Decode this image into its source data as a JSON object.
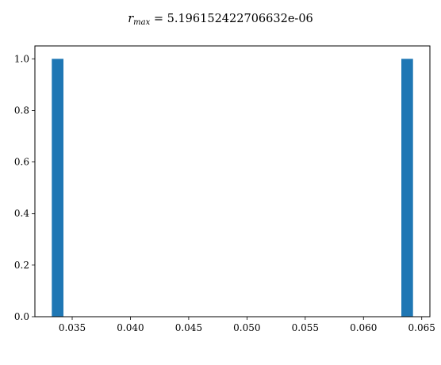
{
  "chart_data": {
    "type": "bar",
    "title_var": "r",
    "title_sub": "max",
    "title_value": " = 5.196152422706632e-06",
    "bars": [
      {
        "x_start": 0.03325,
        "x_end": 0.03425,
        "value": 1.0
      },
      {
        "x_start": 0.06325,
        "x_end": 0.06425,
        "value": 1.0
      }
    ],
    "xlim": [
      0.0318,
      0.0657
    ],
    "ylim": [
      0.0,
      1.05
    ],
    "xticks": [
      0.035,
      0.04,
      0.045,
      0.05,
      0.055,
      0.06,
      0.065
    ],
    "xtick_labels": [
      "0.035",
      "0.040",
      "0.045",
      "0.050",
      "0.055",
      "0.060",
      "0.065"
    ],
    "yticks": [
      0.0,
      0.2,
      0.4,
      0.6,
      0.8,
      1.0
    ],
    "ytick_labels": [
      "0.0",
      "0.2",
      "0.4",
      "0.6",
      "0.8",
      "1.0"
    ],
    "grid": false,
    "bar_color": "#1f77b4"
  }
}
